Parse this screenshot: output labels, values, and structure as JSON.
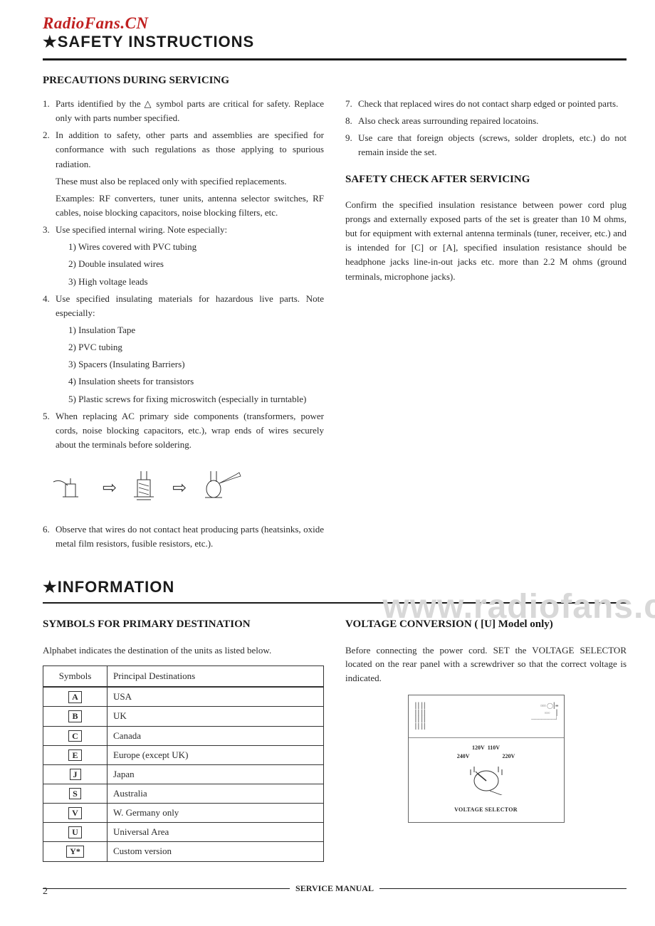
{
  "brand": "RadioFans.CN",
  "title_safety": "★SAFETY INSTRUCTIONS",
  "heading_precautions": "PRECAUTIONS DURING SERVICING",
  "left_items": [
    {
      "n": "1.",
      "t": "Parts identified by the △ symbol parts are critical for safety. Replace only with parts number specified."
    },
    {
      "n": "2.",
      "t": "In addition to safety, other parts and assemblies are specified for conformance with such regulations as those applying to spurious radiation."
    },
    {
      "n": "",
      "t": "These must also be replaced only with specified replacements."
    },
    {
      "n": "",
      "t": "Examples: RF converters, tuner units, antenna selector switches, RF cables, noise blocking capacitors, noise blocking filters, etc."
    },
    {
      "n": "3.",
      "t": "Use specified internal wiring. Note especially:"
    },
    {
      "n": "",
      "t": "1) Wires covered with PVC tubing",
      "sub": true
    },
    {
      "n": "",
      "t": "2) Double insulated wires",
      "sub": true
    },
    {
      "n": "",
      "t": "3) High voltage leads",
      "sub": true
    },
    {
      "n": "4.",
      "t": "Use specified insulating materials for hazardous live parts. Note especially:"
    },
    {
      "n": "",
      "t": "1) Insulation Tape",
      "sub": true
    },
    {
      "n": "",
      "t": "2) PVC tubing",
      "sub": true
    },
    {
      "n": "",
      "t": "3) Spacers (Insulating Barriers)",
      "sub": true
    },
    {
      "n": "",
      "t": "4) Insulation sheets for transistors",
      "sub": true
    },
    {
      "n": "",
      "t": "5) Plastic screws for fixing microswitch (especially in turntable)",
      "sub": true
    },
    {
      "n": "5.",
      "t": "When replacing AC primary side components (transformers, power cords, noise blocking capacitors, etc.), wrap ends of wires securely about the terminals before soldering."
    }
  ],
  "left_item_6": {
    "n": "6.",
    "t": "Observe that wires do not contact heat producing parts (heatsinks, oxide metal film resistors, fusible resistors, etc.)."
  },
  "right_items": [
    {
      "n": "7.",
      "t": "Check that replaced wires do not contact sharp edged or pointed parts."
    },
    {
      "n": "8.",
      "t": "Also check areas surrounding repaired locatoins."
    },
    {
      "n": "9.",
      "t": "Use care that foreign objects (screws, solder droplets, etc.) do not remain inside the set."
    }
  ],
  "heading_safety_check": "SAFETY CHECK AFTER SERVICING",
  "safety_check_text": "Confirm the specified insulation resistance between power cord plug prongs and externally exposed parts of the set is greater than 10 M ohms, but for equipment with external antenna terminals (tuner, receiver, etc.) and is intended for [C] or [A], specified insulation resistance should be headphone jacks line-in-out jacks etc. more than 2.2 M ohms (ground terminals, microphone jacks).",
  "watermark": "www.radiofans.c",
  "title_info": "★INFORMATION",
  "heading_symbols": "SYMBOLS FOR PRIMARY DESTINATION",
  "symbols_intro": "Alphabet indicates the destination of the units as listed below.",
  "table": {
    "col1": "Symbols",
    "col2": "Principal Destinations",
    "rows": [
      {
        "s": "A",
        "d": "USA"
      },
      {
        "s": "B",
        "d": "UK"
      },
      {
        "s": "C",
        "d": "Canada"
      },
      {
        "s": "E",
        "d": "Europe (except UK)"
      },
      {
        "s": "J",
        "d": "Japan"
      },
      {
        "s": "S",
        "d": "Australia"
      },
      {
        "s": "V",
        "d": "W. Germany only"
      },
      {
        "s": "U",
        "d": "Universal Area"
      },
      {
        "s": "Y*",
        "d": "Custom version"
      }
    ]
  },
  "heading_voltage": "VOLTAGE CONVERSION ( [U] Model only)",
  "voltage_intro": "Before connecting the power cord. SET the VOLTAGE SELECTOR located on the rear panel with a screwdriver so that the correct voltage is indicated.",
  "voltage_labels": {
    "a": "120V",
    "b": "110V",
    "c": "240V",
    "d": "220V"
  },
  "voltage_caption": "VOLTAGE SELECTOR",
  "footer_label": "SERVICE MANUAL",
  "page_number": "2",
  "colors": {
    "brand": "#c02020",
    "text": "#2a2a2a",
    "watermark": "#d8d8d8",
    "rule": "#1a1a1a",
    "background": "#ffffff"
  }
}
